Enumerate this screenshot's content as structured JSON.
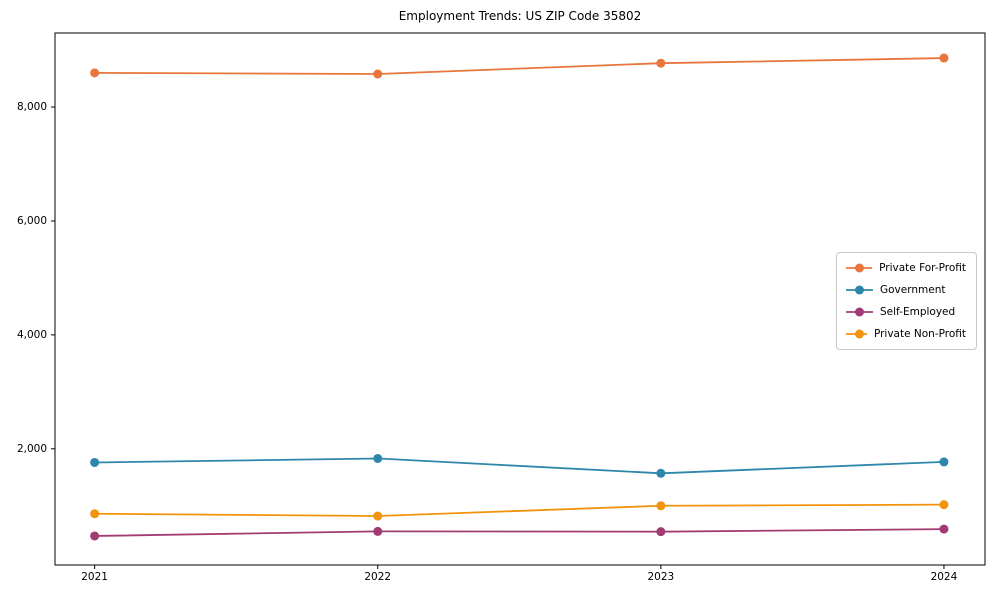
{
  "chart_data": {
    "type": "line",
    "title": "Employment Trends: US ZIP Code 35802",
    "x": [
      2021,
      2022,
      2023,
      2024
    ],
    "xtick_labels": [
      "2021",
      "2022",
      "2023",
      "2024"
    ],
    "series": [
      {
        "name": "Private For-Profit",
        "color": "#E8763C",
        "values": [
          8600,
          8580,
          8770,
          8860
        ]
      },
      {
        "name": "Government",
        "color": "#2E86AB",
        "values": [
          1760,
          1830,
          1570,
          1770
        ]
      },
      {
        "name": "Self-Employed",
        "color": "#A23B72",
        "values": [
          470,
          550,
          545,
          590
        ]
      },
      {
        "name": "Private Non-Profit",
        "color": "#F1930D",
        "values": [
          860,
          820,
          1000,
          1020
        ]
      }
    ],
    "yticks": [
      2000,
      4000,
      6000,
      8000
    ],
    "ytick_labels": [
      "2,000",
      "4,000",
      "6,000",
      "8,000"
    ],
    "ylim": [
      -40,
      9300
    ],
    "xlim": [
      2020.86,
      2024.145
    ],
    "grid": false,
    "legend_position": "center right",
    "marker": "circle",
    "axis_color": "#000000"
  }
}
